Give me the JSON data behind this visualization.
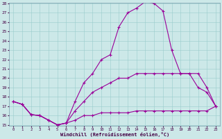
{
  "xlabel": "Windchill (Refroidissement éolien,°C)",
  "bg_color": "#cce8e8",
  "line_color": "#990099",
  "grid_color": "#99cccc",
  "ylim": [
    15,
    28
  ],
  "xlim": [
    -0.5,
    23.5
  ],
  "yticks": [
    15,
    16,
    17,
    18,
    19,
    20,
    21,
    22,
    23,
    24,
    25,
    26,
    27,
    28
  ],
  "xticks": [
    0,
    1,
    2,
    3,
    4,
    5,
    6,
    7,
    8,
    9,
    10,
    11,
    12,
    13,
    14,
    15,
    16,
    17,
    18,
    19,
    20,
    21,
    22,
    23
  ],
  "line1_x": [
    0,
    1,
    2,
    3,
    4,
    5,
    6,
    7,
    8,
    9,
    10,
    11,
    12,
    13,
    14,
    15,
    16,
    17,
    18,
    19,
    20,
    21,
    22,
    23
  ],
  "line1_y": [
    17.5,
    17.2,
    16.1,
    16.0,
    15.5,
    15.0,
    15.2,
    17.5,
    19.5,
    20.5,
    22.0,
    22.5,
    25.5,
    27.0,
    27.5,
    28.2,
    28.0,
    27.2,
    23.0,
    20.5,
    20.5,
    19.0,
    18.5,
    17.0
  ],
  "line2_x": [
    0,
    1,
    2,
    3,
    4,
    5,
    6,
    7,
    8,
    9,
    10,
    11,
    12,
    13,
    14,
    15,
    16,
    17,
    18,
    19,
    20,
    21,
    22,
    23
  ],
  "line2_y": [
    17.5,
    17.2,
    16.1,
    16.0,
    15.5,
    15.0,
    15.2,
    16.5,
    17.5,
    18.5,
    19.0,
    19.5,
    20.0,
    20.0,
    20.5,
    20.5,
    20.5,
    20.5,
    20.5,
    20.5,
    20.5,
    20.5,
    19.0,
    17.0
  ],
  "line3_x": [
    0,
    1,
    2,
    3,
    4,
    5,
    6,
    7,
    8,
    9,
    10,
    11,
    12,
    13,
    14,
    15,
    16,
    17,
    18,
    19,
    20,
    21,
    22,
    23
  ],
  "line3_y": [
    17.5,
    17.2,
    16.1,
    16.0,
    15.5,
    15.0,
    15.2,
    15.5,
    16.0,
    16.0,
    16.3,
    16.3,
    16.3,
    16.3,
    16.5,
    16.5,
    16.5,
    16.5,
    16.5,
    16.5,
    16.5,
    16.5,
    16.5,
    17.0
  ]
}
